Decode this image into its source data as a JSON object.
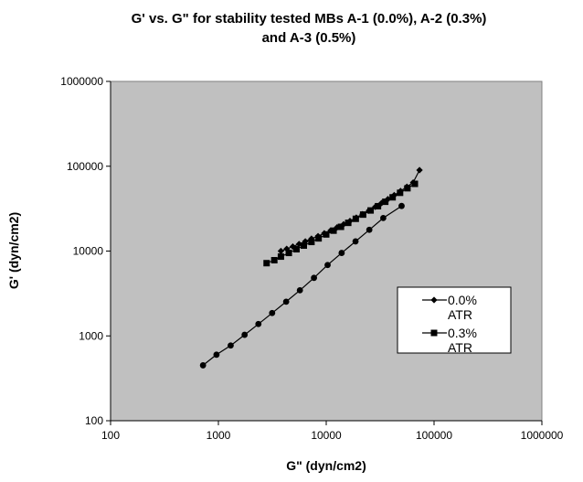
{
  "chart_data": {
    "type": "scatter",
    "title": "G' vs. G\" for stability tested MBs A-1 (0.0%), A-2 (0.3%) and A-3 (0.5%)",
    "title_lines": [
      "G' vs. G\" for stability tested MBs A-1 (0.0%), A-2 (0.3%)",
      "and A-3 (0.5%)"
    ],
    "xlabel": "G\" (dyn/cm2)",
    "ylabel": "G' (dyn/cm2)",
    "x_scale": "log",
    "y_scale": "log",
    "xlim": [
      100,
      1000000
    ],
    "ylim": [
      100,
      1000000
    ],
    "x_ticks": [
      "100",
      "1000",
      "10000",
      "100000",
      "1000000"
    ],
    "y_ticks": [
      "100",
      "1000",
      "10000",
      "100000",
      "1000000"
    ],
    "plot_background": "#c0c0c0",
    "grid": false,
    "legend": {
      "position": "right",
      "entries": [
        {
          "label_lines": [
            "0.0%",
            "ATR"
          ],
          "marker": "diamond"
        },
        {
          "label_lines": [
            "0.3%",
            "ATR"
          ],
          "marker": "square"
        }
      ]
    },
    "series": [
      {
        "name": "0.0% ATR",
        "marker": "diamond",
        "color": "#000000",
        "x": [
          3800,
          4300,
          4900,
          5600,
          6400,
          7300,
          8400,
          9600,
          11000,
          12600,
          14500,
          16600,
          19000,
          21700,
          24900,
          28500,
          32600,
          37300,
          42700,
          48900,
          56000,
          64000,
          73300
        ],
        "y": [
          10000,
          10600,
          11300,
          12100,
          13000,
          14000,
          15000,
          16200,
          17500,
          19000,
          20700,
          22600,
          24800,
          27200,
          30000,
          33200,
          36800,
          40900,
          45600,
          51000,
          57200,
          64300,
          90000
        ]
      },
      {
        "name": "0.3% ATR",
        "marker": "square",
        "color": "#000000",
        "x": [
          2800,
          3300,
          3800,
          4500,
          5300,
          6200,
          7300,
          8500,
          10000,
          11700,
          13700,
          16000,
          18800,
          22000,
          25800,
          30200,
          35300,
          41300,
          48400,
          56700,
          66400
        ],
        "y": [
          7200,
          7800,
          8600,
          9500,
          10500,
          11600,
          12800,
          14100,
          15700,
          17400,
          19300,
          21500,
          24000,
          26900,
          30100,
          33800,
          38100,
          43000,
          48600,
          55000,
          62000
        ]
      },
      {
        "marker": "circle",
        "color": "#000000",
        "x": [
          720,
          960,
          1300,
          1750,
          2350,
          3150,
          4250,
          5700,
          7700,
          10300,
          13900,
          18700,
          25100,
          33800,
          50000
        ],
        "y": [
          450,
          600,
          770,
          1030,
          1380,
          1860,
          2530,
          3450,
          4830,
          6850,
          9500,
          13000,
          17800,
          24500,
          34000
        ]
      }
    ]
  }
}
